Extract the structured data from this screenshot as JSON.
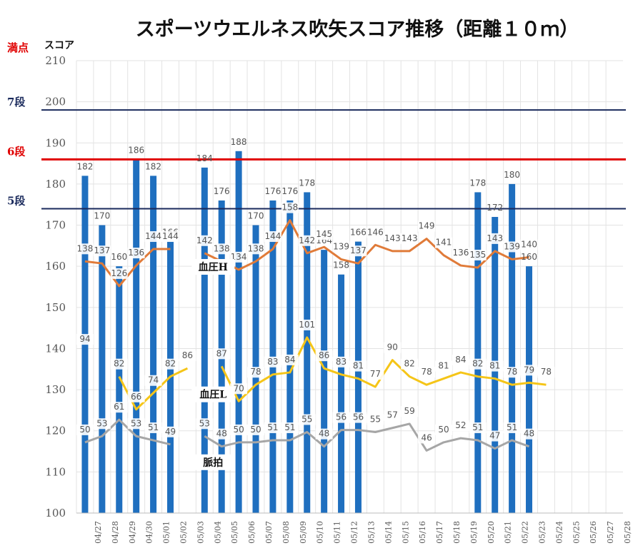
{
  "chart_data": {
    "type": "bar",
    "title": "スポーツウエルネス吹矢スコア推移（距離１０ｍ）",
    "ylabel": "スコア",
    "ylim": [
      100,
      210
    ],
    "yticks": [
      100,
      110,
      120,
      130,
      140,
      150,
      160,
      170,
      180,
      190,
      200,
      210
    ],
    "grid": true,
    "categories": [
      "04/27",
      "04/28",
      "04/29",
      "04/30",
      "05/01",
      "05/02",
      "05/03",
      "05/04",
      "05/05",
      "05/06",
      "05/07",
      "05/08",
      "05/09",
      "05/10",
      "05/11",
      "05/12",
      "05/13",
      "05/14",
      "05/15",
      "05/16",
      "05/17",
      "05/18",
      "05/19",
      "05/20",
      "05/21",
      "05/22",
      "05/23",
      "05/24",
      "05/25",
      "05/26",
      "05/27",
      "05/28"
    ],
    "score": [
      182,
      170,
      160,
      186,
      182,
      166,
      null,
      184,
      176,
      188,
      170,
      176,
      176,
      178,
      164,
      158,
      166,
      null,
      null,
      null,
      null,
      null,
      null,
      178,
      172,
      180,
      160,
      null,
      null,
      null,
      null,
      null
    ],
    "lines": [
      {
        "label": "血圧H",
        "color": "#E07B39",
        "values": [
          138,
          137,
          126,
          136,
          144,
          144,
          null,
          142,
          138,
          134,
          138,
          144,
          158,
          142,
          145,
          139,
          137,
          146,
          143,
          143,
          149,
          141,
          136,
          135,
          143,
          139,
          140,
          null,
          null,
          null,
          null,
          null
        ]
      },
      {
        "label": "血圧L",
        "color": "#F5C518",
        "values": [
          94,
          null,
          82,
          66,
          74,
          82,
          86,
          null,
          87,
          70,
          78,
          83,
          84,
          101,
          86,
          83,
          81,
          77,
          90,
          82,
          78,
          81,
          84,
          82,
          81,
          78,
          79,
          78,
          null,
          null,
          null,
          null
        ]
      },
      {
        "label": "脈拍",
        "color": "#A6A6A6",
        "values": [
          50,
          53,
          61,
          53,
          51,
          49,
          null,
          53,
          48,
          50,
          50,
          51,
          51,
          55,
          48,
          56,
          56,
          55,
          57,
          59,
          46,
          50,
          52,
          51,
          47,
          51,
          48,
          null,
          null,
          null,
          null,
          null
        ]
      }
    ],
    "thresholds": [
      {
        "label": "満点",
        "value": 210,
        "color": "#e00000"
      },
      {
        "label": "7段",
        "value": 198,
        "color": "#1a2a5c"
      },
      {
        "label": "6段",
        "value": 186,
        "color": "#e00000"
      },
      {
        "label": "5段",
        "value": 174,
        "color": "#1a2a5c"
      }
    ],
    "colors": {
      "bar": "#1f6fbf"
    }
  }
}
